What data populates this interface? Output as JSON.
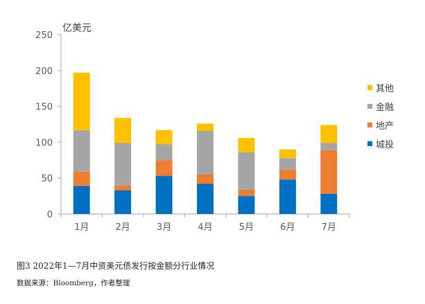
{
  "chart_data": {
    "type": "bar",
    "stacked": true,
    "unit_label": "亿美元",
    "categories": [
      "1月",
      "2月",
      "3月",
      "4月",
      "5月",
      "6月",
      "7月"
    ],
    "series": [
      {
        "name": "城投",
        "color": "#0070C0",
        "values": [
          39,
          33,
          53,
          42,
          25,
          48,
          28
        ]
      },
      {
        "name": "地产",
        "color": "#ED7D31",
        "values": [
          20,
          7,
          22,
          13,
          9,
          14,
          61
        ]
      },
      {
        "name": "金融",
        "color": "#A6A6A6",
        "values": [
          58,
          59,
          22,
          61,
          52,
          16,
          10
        ]
      },
      {
        "name": "其他",
        "color": "#FFC000",
        "values": [
          80,
          35,
          20,
          10,
          20,
          12,
          25
        ]
      }
    ],
    "legend_order": [
      "其他",
      "金融",
      "地产",
      "城投"
    ],
    "legend_position": "right",
    "ylim": [
      0,
      250
    ],
    "yticks": [
      0,
      50,
      100,
      150,
      200,
      250
    ],
    "grid": false
  },
  "caption": "图3 2022年1—7月中资美元债发行按金额分行业情况",
  "source": "数据来源：Bloomberg，作者整理"
}
